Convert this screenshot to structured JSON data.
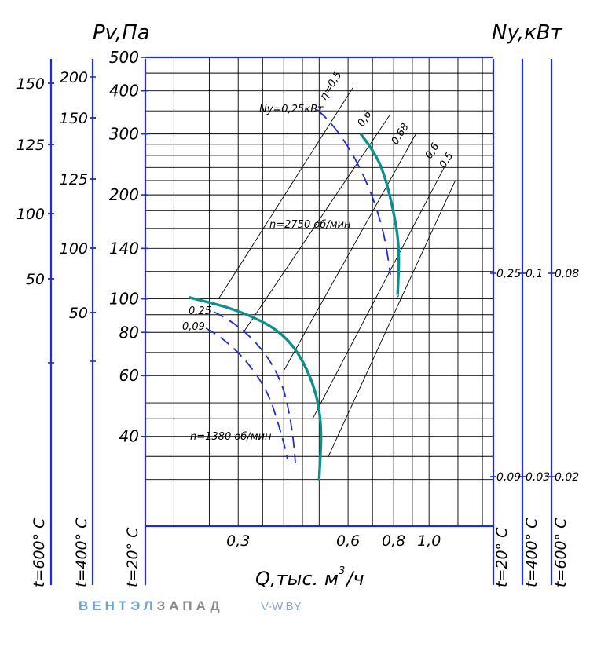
{
  "header": {
    "left_title": "Pv,Па",
    "right_title": "Ny,кВт"
  },
  "chart_data": {
    "type": "line",
    "xlabel": "Q,тыс. м³/ч",
    "xlabel_main": "Q,тыс. м",
    "xlabel_sup": "3",
    "xlabel_tail": "/ч",
    "x_ticks": [
      "0,3",
      "0,6",
      "0,8",
      "1,0"
    ],
    "ylabel": "Pv,Па",
    "y_ticks": [
      "40",
      "60",
      "80",
      "100",
      "140",
      "200",
      "300",
      "400",
      "500"
    ],
    "y_400_ticks": [
      "50",
      "100",
      "125",
      "150",
      "200"
    ],
    "y_600_ticks": [
      "50",
      "100",
      "125",
      "150"
    ],
    "temperature_labels": {
      "left_600": "t=600° C",
      "left_400": "t=400° C",
      "left_20": "t=20° C",
      "right_20": "t=20° C",
      "right_400": "t=400° C",
      "right_600": "t=600° C"
    },
    "power_labels": {
      "high_20": "0,25",
      "high_400": "0,1",
      "high_600": "0,08",
      "low_20": "0,09",
      "low_400": "0,03",
      "low_600": "0,02"
    },
    "efficiency_labels": [
      "η=0,5",
      "0,6",
      "0,68",
      "0,6",
      "0,5"
    ],
    "annotations": {
      "power_upper": "Ny=0,25кВт",
      "speed_high": "n=2750 об/мин",
      "speed_low": "n=1380 об/мин",
      "power_lower_a": "0,25",
      "power_lower_b": "0,09"
    },
    "series": [
      {
        "name": "n=2750 об/мин",
        "x": [
          0.65,
          0.7,
          0.75,
          0.8,
          0.83,
          0.82
        ],
        "y": [
          300,
          270,
          235,
          180,
          140,
          102
        ]
      },
      {
        "name": "n=1380 об/мин",
        "x": [
          0.22,
          0.3,
          0.4,
          0.47,
          0.51,
          0.5
        ],
        "y": [
          101,
          93,
          80,
          62,
          45,
          30
        ]
      }
    ]
  },
  "watermark": {
    "brand_part1": "ВЕНТЭЛ",
    "brand_part2": "ЗАПАД",
    "site": "V-W.BY"
  }
}
